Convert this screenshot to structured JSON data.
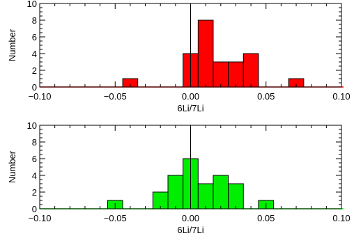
{
  "chart_data": [
    {
      "type": "bar",
      "xlabel": "6Li/7Li",
      "ylabel": "Number",
      "xlim": [
        -0.1,
        0.1
      ],
      "ylim": [
        0,
        10
      ],
      "xticks": [
        -0.1,
        -0.05,
        0.0,
        0.05,
        0.1
      ],
      "xtick_labels": [
        "−0.10",
        "−0.05",
        "0.00",
        "0.05",
        "0.10"
      ],
      "yticks": [
        0,
        2,
        4,
        6,
        8,
        10
      ],
      "ytick_labels": [
        "0",
        "2",
        "4",
        "6",
        "8",
        "10"
      ],
      "bin_width": 0.01,
      "bins": [
        {
          "x0": -0.045,
          "x1": -0.035,
          "count": 1
        },
        {
          "x0": -0.005,
          "x1": 0.005,
          "count": 4
        },
        {
          "x0": 0.005,
          "x1": 0.015,
          "count": 8
        },
        {
          "x0": 0.015,
          "x1": 0.025,
          "count": 3
        },
        {
          "x0": 0.025,
          "x1": 0.035,
          "count": 3
        },
        {
          "x0": 0.035,
          "x1": 0.045,
          "count": 4
        },
        {
          "x0": 0.065,
          "x1": 0.075,
          "count": 1
        }
      ],
      "reference_line_x": 0,
      "fill_color": "#ff0000",
      "edge_color": "#000000"
    },
    {
      "type": "bar",
      "xlabel": "6Li/7Li",
      "ylabel": "Number",
      "xlim": [
        -0.1,
        0.1
      ],
      "ylim": [
        0,
        10
      ],
      "xticks": [
        -0.1,
        -0.05,
        0.0,
        0.05,
        0.1
      ],
      "xtick_labels": [
        "−0.10",
        "−0.05",
        "0.00",
        "0.05",
        "0.10"
      ],
      "yticks": [
        0,
        2,
        4,
        6,
        8,
        10
      ],
      "ytick_labels": [
        "0",
        "2",
        "4",
        "6",
        "8",
        "10"
      ],
      "bin_width": 0.01,
      "bins": [
        {
          "x0": -0.055,
          "x1": -0.045,
          "count": 1
        },
        {
          "x0": -0.025,
          "x1": -0.015,
          "count": 2
        },
        {
          "x0": -0.015,
          "x1": -0.005,
          "count": 4
        },
        {
          "x0": -0.005,
          "x1": 0.005,
          "count": 6
        },
        {
          "x0": 0.005,
          "x1": 0.015,
          "count": 3
        },
        {
          "x0": 0.015,
          "x1": 0.025,
          "count": 4
        },
        {
          "x0": 0.025,
          "x1": 0.035,
          "count": 3
        },
        {
          "x0": 0.045,
          "x1": 0.055,
          "count": 1
        }
      ],
      "reference_line_x": 0,
      "fill_color": "#00ee00",
      "edge_color": "#000000"
    }
  ]
}
